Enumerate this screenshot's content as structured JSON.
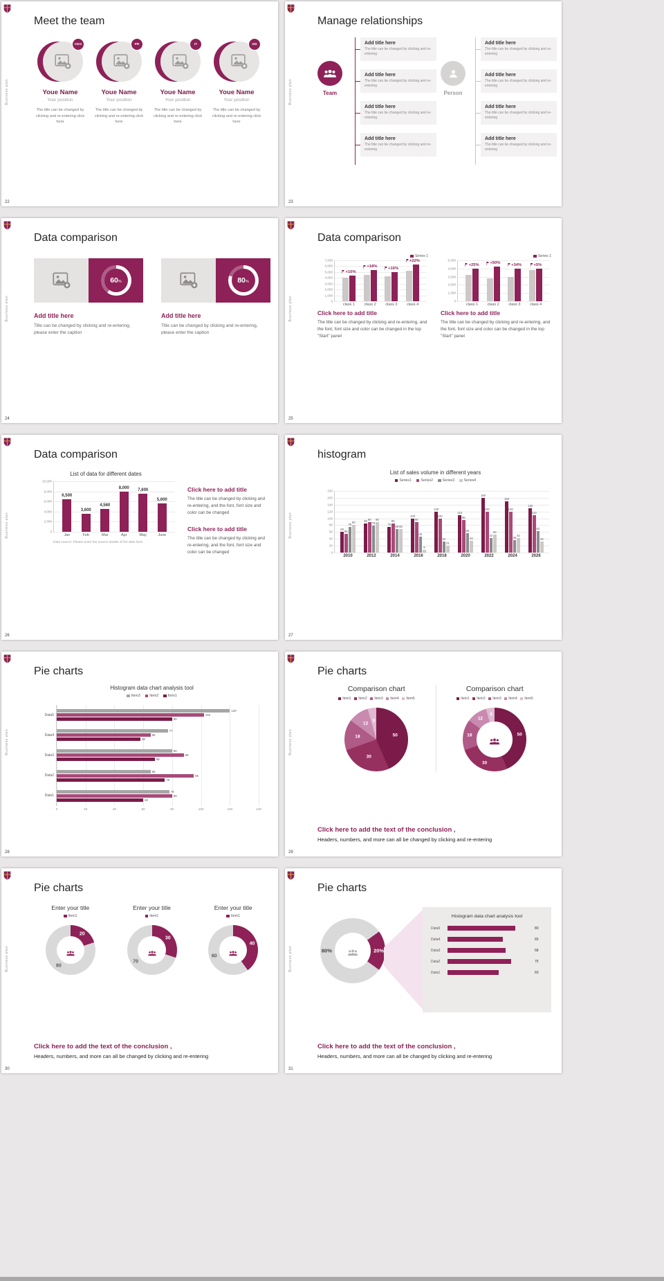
{
  "page": {
    "background": "#e9e7e7"
  },
  "colors": {
    "accent": "#8e2157",
    "accent_dark": "#7a1b49",
    "gray_track": "#d9d9d9"
  },
  "common": {
    "sidebar_text": "Business plan",
    "conclusion_title": "Click here to add the text of the conclusion ,",
    "conclusion_body": "Headers, numbers, and more can all be changed by clicking and re-entering"
  },
  "slides": {
    "team": {
      "page": "22",
      "title": "Meet the team",
      "members": [
        {
          "badge": "CEO",
          "name": "Youe Name",
          "position": "Your position",
          "desc": "The title can be changed by clicking and re-entering click here"
        },
        {
          "badge": "PR",
          "name": "Youe Name",
          "position": "Your position",
          "desc": "The title can be changed by clicking and re-entering click here"
        },
        {
          "badge": "IT",
          "name": "Youe Name",
          "position": "Your position",
          "desc": "The title can be changed by clicking and re-entering click here"
        },
        {
          "badge": "GD",
          "name": "Youe Name",
          "position": "Your position",
          "desc": "The title can be changed by clicking and re-entering click here"
        }
      ]
    },
    "relationships": {
      "page": "23",
      "title": "Manage relationships",
      "team_label": "Team",
      "person_label": "Person",
      "box_title": "Add title here",
      "box_desc": "The title can be changed by clicking and re-entering"
    },
    "compare_cards": {
      "page": "24",
      "title": "Data comparison",
      "cards": [
        {
          "percent": "60",
          "unit": "%",
          "title": "Add title here",
          "desc": "Title can be changed by clicking and re-entering, please enter the caption"
        },
        {
          "percent": "80",
          "unit": "%",
          "title": "Add title here",
          "desc": "Title can be changed by clicking and re-entering, please enter the caption"
        }
      ]
    },
    "compare_bars": {
      "page": "25",
      "title": "Data comparison",
      "blocks": [
        {
          "title": "Click here to add title",
          "body": "The title can be changed by clicking and re-entering, and the font, font size and color can be changed in the top \"Start\" panel"
        },
        {
          "title": "Click here to add title",
          "body": "The title can be changed by clicking and re-entering, and the font, font size and color can be changed in the top \"Start\" panel"
        }
      ],
      "charts": [
        {
          "type": "column",
          "legend": [
            "Series 1"
          ],
          "legend_colors": [
            "#8e2157"
          ],
          "ymax": 7000,
          "yticks": [
            "7,000",
            "6,000",
            "5,000",
            "4,000",
            "3,000",
            "2,000",
            "1,000",
            "0"
          ],
          "categories": [
            "class 1",
            "class 2",
            "class 3",
            "class 4"
          ],
          "series": [
            {
              "color": "#ccc8c8",
              "values": [
                4000,
                4500,
                4300,
                5200
              ]
            },
            {
              "color": "#8e2157",
              "values": [
                4400,
                5300,
                5000,
                6300
              ]
            }
          ],
          "labels": [
            "+10%",
            "+18%",
            "+16%",
            "+22%"
          ],
          "flag": true
        },
        {
          "type": "column",
          "legend": [
            "Series 1"
          ],
          "legend_colors": [
            "#8e2157"
          ],
          "ymax": 5000,
          "yticks": [
            "5,000",
            "4,000",
            "3,000",
            "2,000",
            "1,000",
            "0"
          ],
          "categories": [
            "class 1",
            "class 2",
            "class 3",
            "class 4"
          ],
          "series": [
            {
              "color": "#ccc8c8",
              "values": [
                3200,
                2800,
                3000,
                3800
              ]
            },
            {
              "color": "#8e2157",
              "values": [
                4000,
                4200,
                4000,
                4000
              ]
            }
          ],
          "labels": [
            "+25%",
            "+50%",
            "+34%",
            "+5%"
          ],
          "flag": true
        }
      ]
    },
    "compare_dates": {
      "page": "26",
      "title": "Data comparison",
      "chart": {
        "type": "column",
        "chart_title": "List of data for different dates",
        "ymax": 10000,
        "yticks": [
          "10,000",
          "8,000",
          "6,000",
          "4,000",
          "2,000",
          "0"
        ],
        "categories": [
          "Jan",
          "Feb",
          "Mar",
          "Apr",
          "May",
          "June"
        ],
        "series": [
          {
            "color": "#8e2157",
            "values": [
              6500,
              3600,
              4560,
              8000,
              7600,
              5600
            ]
          }
        ],
        "labels": [
          "6,500",
          "3,600",
          "4,560",
          "8,000",
          "7,600",
          "5,600"
        ],
        "note": "Data source: Please enter the source details of the data here"
      },
      "blocks": [
        {
          "title": "Click here to add title",
          "body": "The title can be changed by clicking and re-entering, and the font, font size and color can be changed"
        },
        {
          "title": "Click here to add title",
          "body": "The title can be changed by clicking and re-entering, and the font, font size and color can be changed"
        }
      ]
    },
    "histogram": {
      "page": "27",
      "title": "histogram",
      "chart": {
        "type": "column",
        "chart_title": "List of sales volume in different years",
        "ymax": 180,
        "yticks": [
          "180",
          "160",
          "140",
          "120",
          "100",
          "80",
          "60",
          "40",
          "20",
          "0"
        ],
        "categories": [
          "2010",
          "2012",
          "2014",
          "2016",
          "2018",
          "2020",
          "2022",
          "2024",
          "2026"
        ],
        "legend": [
          "Series1",
          "Series2",
          "Series3",
          "Series4"
        ],
        "legend_colors": [
          "#7a1b49",
          "#a84a79",
          "#8c8c8c",
          "#ccc8c8"
        ],
        "series": [
          {
            "color": "#7a1b49",
            "values": [
              60,
              85,
              75,
              100,
              120,
              110,
              160,
              150,
              130
            ]
          },
          {
            "color": "#a84a79",
            "values": [
              55,
              90,
              85,
              90,
              100,
              95,
              120,
              120,
              110
            ]
          },
          {
            "color": "#8c8c8c",
            "values": [
              75,
              78,
              68,
              46,
              32,
              56,
              42,
              36,
              62
            ]
          },
          {
            "color": "#ccc8c8",
            "values": [
              80,
              90,
              68,
              9,
              21,
              34,
              52,
              42,
              32
            ]
          }
        ],
        "bar_labels": true
      }
    },
    "hbar_slide": {
      "page": "28",
      "title": "Pie charts",
      "chart": {
        "type": "hbar",
        "chart_title": "Histogram data chart analysis tool",
        "legend": [
          "Item3",
          "Item2",
          "Item1"
        ],
        "legend_colors": [
          "#a6a6a6",
          "#a84a79",
          "#7a1b49"
        ],
        "xmax": 140,
        "xticks": [
          "0",
          "20",
          "40",
          "60",
          "80",
          "100",
          "120",
          "140"
        ],
        "categories": [
          "Data5",
          "Data4",
          "Data3",
          "Data2",
          "Data1"
        ],
        "series": [
          {
            "color": "#a6a6a6",
            "values": [
              120,
              77,
              80,
              65,
              78
            ]
          },
          {
            "color": "#a84a79",
            "values": [
              102,
              65,
              88,
              95,
              80
            ]
          },
          {
            "color": "#7a1b49",
            "values": [
              80,
              58,
              68,
              75,
              60
            ]
          }
        ]
      }
    },
    "pies_compare": {
      "page": "29",
      "title": "Pie charts",
      "left": {
        "chart_title": "Comparison chart",
        "legend": [
          "Item1",
          "Item2",
          "Item3",
          "Item4",
          "Item5"
        ],
        "colors": [
          "#7a1b49",
          "#96305f",
          "#b05a88",
          "#c98ab0",
          "#e0b9d0"
        ],
        "values": [
          50,
          30,
          18,
          12,
          5
        ],
        "labels": [
          "50",
          "30",
          "18",
          "12",
          "5"
        ],
        "donut": false,
        "lr": 0.6
      },
      "right": {
        "chart_title": "Comparison chart",
        "legend": [
          "Item1",
          "Item2",
          "Item3",
          "Item4",
          "Item5"
        ],
        "colors": [
          "#7a1b49",
          "#96305f",
          "#b05a88",
          "#c98ab0",
          "#e0b9d0"
        ],
        "values": [
          50,
          30,
          18,
          12,
          5
        ],
        "labels": [
          "50",
          "30",
          "18",
          "12",
          "5"
        ],
        "donut": true,
        "lr": 0.8
      }
    },
    "pies_items": {
      "page": "30",
      "title": "Pie charts",
      "donuts": [
        {
          "chart_title": "Enter your title",
          "legend": [
            "Item1"
          ],
          "legend_colors": [
            "#8e2157"
          ],
          "colors": [
            "#8e2157",
            "#d9d9d9"
          ],
          "values": [
            20,
            80
          ],
          "labels": [
            "20",
            "80"
          ],
          "label_colors": [
            "#ffffff",
            "#595959"
          ],
          "donut": true,
          "lr": 0.8
        },
        {
          "chart_title": "Enter your title",
          "legend": [
            "Item1"
          ],
          "legend_colors": [
            "#8e2157"
          ],
          "colors": [
            "#8e2157",
            "#d9d9d9"
          ],
          "values": [
            30,
            70
          ],
          "labels": [
            "30",
            "70"
          ],
          "label_colors": [
            "#ffffff",
            "#595959"
          ],
          "donut": true,
          "lr": 0.8
        },
        {
          "chart_title": "Enter your title",
          "legend": [
            "Item1"
          ],
          "legend_colors": [
            "#8e2157"
          ],
          "colors": [
            "#8e2157",
            "#d9d9d9"
          ],
          "values": [
            40,
            60
          ],
          "labels": [
            "40",
            "60"
          ],
          "label_colors": [
            "#ffffff",
            "#595959"
          ],
          "donut": true,
          "lr": 0.8
        }
      ]
    },
    "pie_panel": {
      "page": "31",
      "title": "Pie charts",
      "donut": {
        "colors": [
          "#8e2157",
          "#d9d9d9"
        ],
        "values": [
          20,
          80
        ],
        "labels": [
          "20%",
          "80%"
        ],
        "label_colors": [
          "#ffffff",
          "#404040"
        ],
        "donut": true,
        "start": 54,
        "lr": 0.8
      },
      "panel": {
        "chart_title": "Histogram data chart analysis tool",
        "xmax": 100,
        "bars": [
          {
            "label": "Data5",
            "value": 80
          },
          {
            "label": "Data4",
            "value": 65
          },
          {
            "label": "Data3",
            "value": 68
          },
          {
            "label": "Data2",
            "value": 75
          },
          {
            "label": "Data1",
            "value": 60
          }
        ]
      }
    }
  }
}
